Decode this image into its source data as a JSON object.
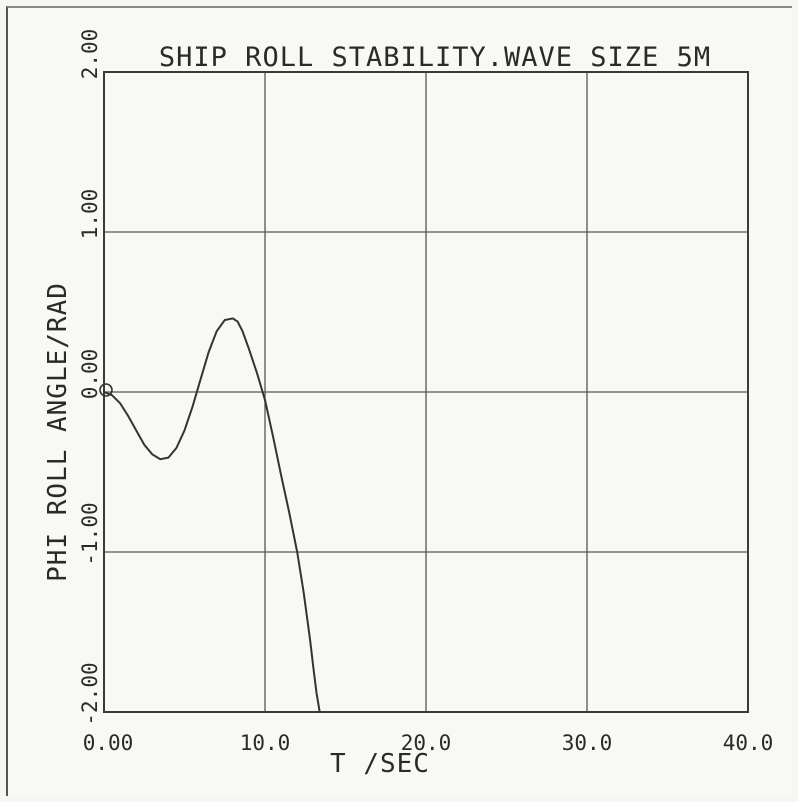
{
  "chart_data": {
    "type": "line",
    "title": "SHIP ROLL STABILITY.WAVE SIZE 5M",
    "xlabel": "T /SEC",
    "ylabel": "PHI ROLL ANGLE/RAD",
    "xlim": [
      0,
      40
    ],
    "ylim": [
      -2,
      2
    ],
    "grid": true,
    "x_ticks": [
      "0.00",
      "10.0",
      "20.0",
      "30.0",
      "40.0"
    ],
    "y_ticks": [
      "-2.00",
      "-1.00",
      "0.00",
      "1.00",
      "2.00"
    ],
    "series": [
      {
        "x": [
          0,
          0.5,
          1,
          1.5,
          2,
          2.5,
          3,
          3.5,
          4,
          4.5,
          5,
          5.5,
          6,
          6.5,
          7,
          7.5,
          8,
          8.3,
          8.6,
          9,
          9.5,
          10,
          10.5,
          11,
          11.5,
          12,
          12.4,
          12.8,
          13.0,
          13.2,
          13.4
        ],
        "y": [
          0.0,
          -0.02,
          -0.07,
          -0.15,
          -0.24,
          -0.33,
          -0.39,
          -0.42,
          -0.41,
          -0.35,
          -0.24,
          -0.09,
          0.08,
          0.25,
          0.38,
          0.45,
          0.46,
          0.44,
          0.38,
          0.27,
          0.12,
          -0.05,
          -0.28,
          -0.52,
          -0.75,
          -1.0,
          -1.25,
          -1.55,
          -1.72,
          -1.88,
          -2.0
        ]
      }
    ]
  }
}
